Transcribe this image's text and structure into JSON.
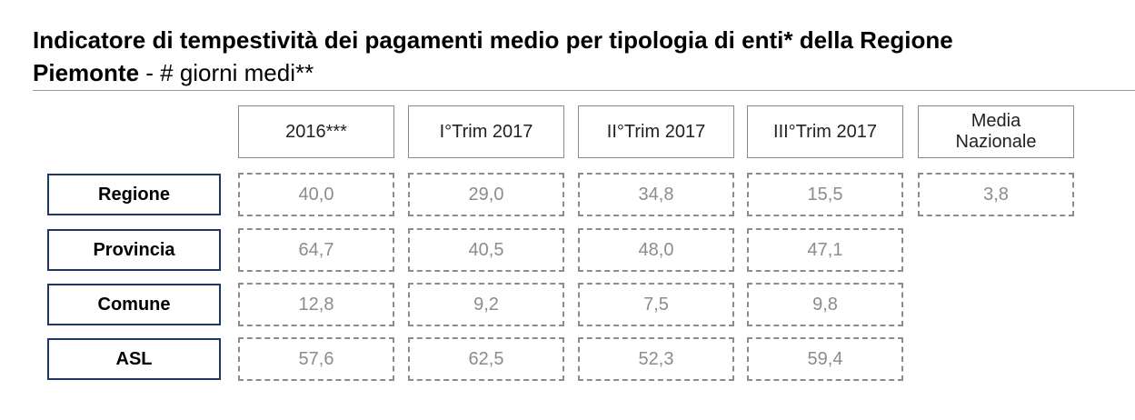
{
  "title_bold": "Indicatore di tempestività dei pagamenti medio per tipologia di enti* della Regione",
  "title_line2_bold": "Piemonte",
  "title_line2_rest": " - # giorni medi**",
  "chart_data": {
    "type": "table",
    "columns": [
      "2016***",
      "I°Trim 2017",
      "II°Trim 2017",
      "III°Trim 2017",
      "Media\nNazionale"
    ],
    "rows": [
      {
        "label": "Regione",
        "values": [
          "40,0",
          "29,0",
          "34,8",
          "15,5",
          "3,8"
        ]
      },
      {
        "label": "Provincia",
        "values": [
          "64,7",
          "40,5",
          "48,0",
          "47,1"
        ]
      },
      {
        "label": "Comune",
        "values": [
          "12,8",
          "9,2",
          "7,5",
          "9,8"
        ]
      },
      {
        "label": "ASL",
        "values": [
          "57,6",
          "62,5",
          "52,3",
          "59,4"
        ]
      }
    ]
  },
  "colors": {
    "label_border": "#1f3864",
    "cell_text": "#8c8c8c",
    "cell_border": "#8c8c8c",
    "header_border": "#8a8a8a"
  }
}
